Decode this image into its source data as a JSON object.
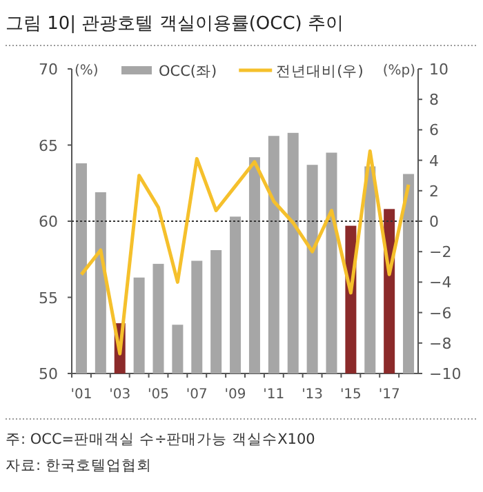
{
  "chart_data": {
    "type": "bar",
    "title": "그림 10| 관광호텔 객실이용률(OCC) 추이",
    "ylabel": "(%)",
    "y2label": "(%p)",
    "categories": [
      "'01",
      null,
      "'03",
      null,
      "'05",
      null,
      "'07",
      null,
      "'09",
      null,
      "'11",
      null,
      "'13",
      null,
      "'15",
      null,
      "'17",
      null
    ],
    "series": [
      {
        "name": "OCC(좌)",
        "color": "#a6a6a6",
        "colors": [
          "#a6a6a6",
          "#a6a6a6",
          "#8b2a2a",
          "#a6a6a6",
          "#a6a6a6",
          "#a6a6a6",
          "#a6a6a6",
          "#a6a6a6",
          "#a6a6a6",
          "#a6a6a6",
          "#a6a6a6",
          "#a6a6a6",
          "#a6a6a6",
          "#a6a6a6",
          "#8b2a2a",
          "#a6a6a6",
          "#8b2a2a",
          "#a6a6a6"
        ],
        "values": [
          63.8,
          61.9,
          53.3,
          56.3,
          57.2,
          53.2,
          57.4,
          58.1,
          60.3,
          64.2,
          65.6,
          65.8,
          63.7,
          64.5,
          59.7,
          63.6,
          60.8,
          63.1
        ]
      },
      {
        "name": "전년대비(우)",
        "type": "line",
        "axis": "y2",
        "color": "#f5c02c",
        "values": [
          -3.5,
          -1.9,
          -8.7,
          3.0,
          0.9,
          -4.0,
          4.1,
          0.7,
          2.3,
          3.9,
          1.3,
          -0.1,
          -2.0,
          0.7,
          -4.7,
          4.6,
          -3.5,
          2.4
        ]
      }
    ],
    "ylim": [
      50,
      70
    ],
    "yticks": [
      50,
      55,
      60,
      65,
      70
    ],
    "y2lim": [
      -10,
      10
    ],
    "y2ticks": [
      -10,
      -8,
      -6,
      -4,
      -2,
      0,
      2,
      4,
      6,
      8,
      10
    ],
    "ref_lines": [
      {
        "axis": "y",
        "value": 60,
        "color": "#333333",
        "line_style": "dotted"
      }
    ],
    "legend": "top",
    "annotations": [
      "주: OCC=판매객실 수÷판매가능 객실수X100",
      "자료: 한국호텔업협회"
    ]
  }
}
